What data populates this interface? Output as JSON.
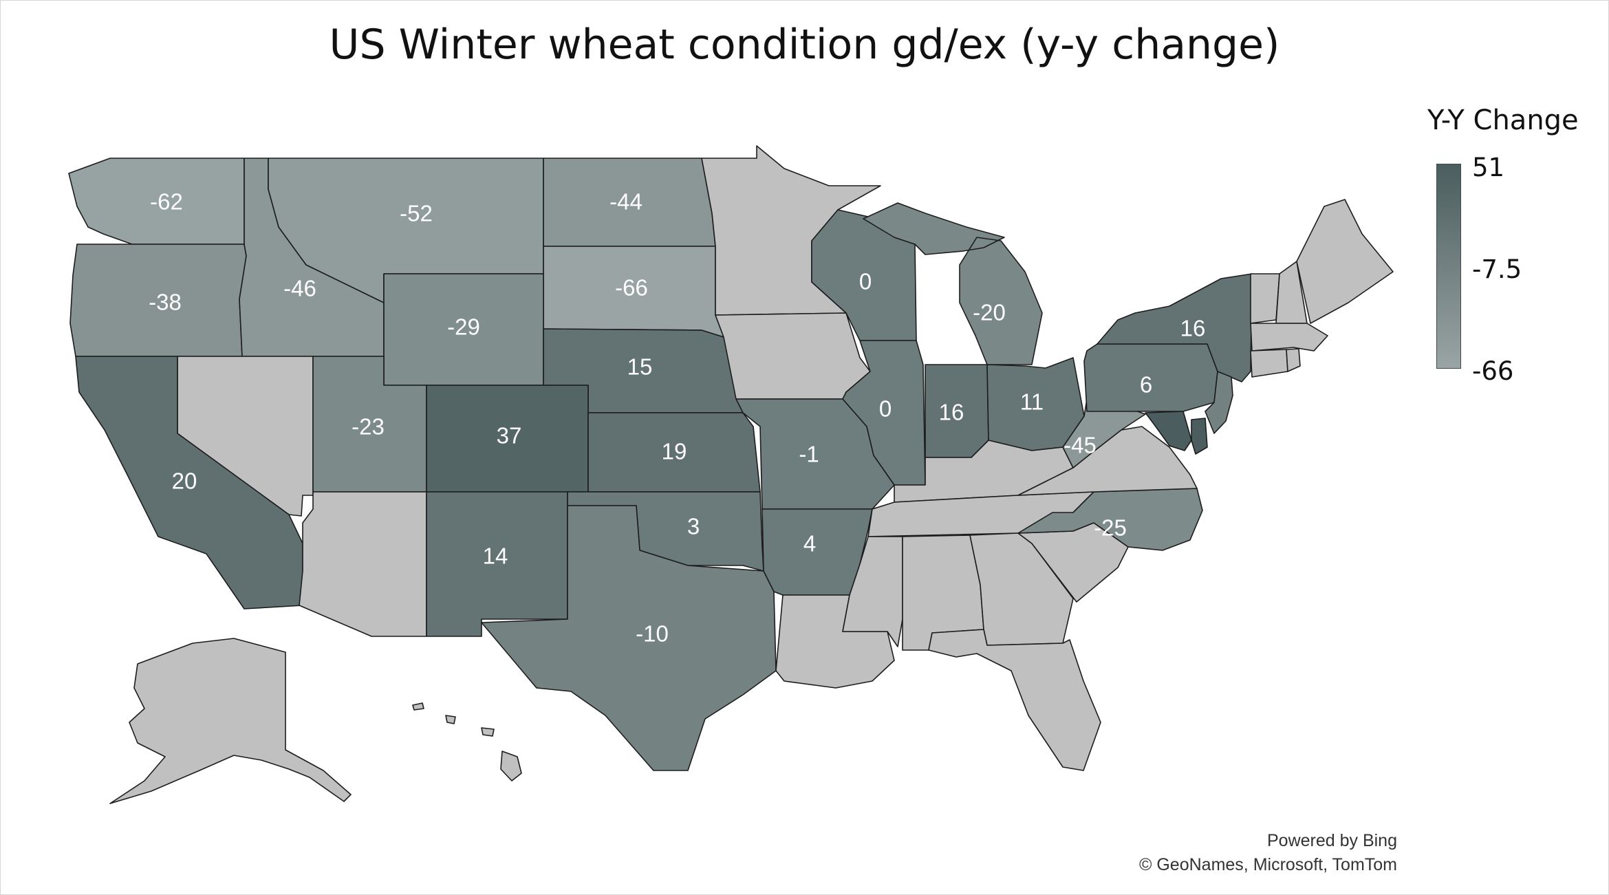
{
  "title": "US Winter wheat condition gd/ex (y-y change)",
  "legend": {
    "title": "Y-Y Change",
    "ticks": [
      "51",
      "-7.5",
      "-66"
    ],
    "min_value": -66,
    "max_value": 51,
    "color_high": "#4b5d5e",
    "color_low": "#9aa4a4"
  },
  "no_data_color": "#c0c0c0",
  "states": [
    {
      "id": "WA",
      "value": -62,
      "label": "-62"
    },
    {
      "id": "OR",
      "value": -38,
      "label": "-38"
    },
    {
      "id": "ID",
      "value": -46,
      "label": "-46"
    },
    {
      "id": "MT",
      "value": -52,
      "label": "-52"
    },
    {
      "id": "ND",
      "value": -44,
      "label": "-44"
    },
    {
      "id": "SD",
      "value": -66,
      "label": "-66"
    },
    {
      "id": "WY",
      "value": -29,
      "label": "-29"
    },
    {
      "id": "NE",
      "value": 15,
      "label": "15"
    },
    {
      "id": "CA",
      "value": 20,
      "label": "20"
    },
    {
      "id": "UT",
      "value": -23,
      "label": "-23"
    },
    {
      "id": "CO",
      "value": 37,
      "label": "37"
    },
    {
      "id": "KS",
      "value": 19,
      "label": "19"
    },
    {
      "id": "MO",
      "value": -1,
      "label": "-1"
    },
    {
      "id": "IL",
      "value": 0,
      "label": "0"
    },
    {
      "id": "WI",
      "value": 0,
      "label": "0"
    },
    {
      "id": "MI",
      "value": -20,
      "label": "-20"
    },
    {
      "id": "IN",
      "value": 16,
      "label": "16"
    },
    {
      "id": "OH",
      "value": 11,
      "label": "11"
    },
    {
      "id": "PA",
      "value": 6,
      "label": "6"
    },
    {
      "id": "NY",
      "value": 16,
      "label": "16"
    },
    {
      "id": "WV",
      "value": -45,
      "label": "-45"
    },
    {
      "id": "NC",
      "value": -25,
      "label": "-25"
    },
    {
      "id": "OK",
      "value": 3,
      "label": "3"
    },
    {
      "id": "AR",
      "value": 4,
      "label": "4"
    },
    {
      "id": "NM",
      "value": 14,
      "label": "14"
    },
    {
      "id": "TX",
      "value": -10,
      "label": "-10"
    },
    {
      "id": "NJ",
      "value": -7.5
    },
    {
      "id": "MD",
      "value": 51
    },
    {
      "id": "DE",
      "value": 51
    },
    {
      "id": "NV"
    },
    {
      "id": "AZ"
    },
    {
      "id": "MN"
    },
    {
      "id": "IA"
    },
    {
      "id": "KY"
    },
    {
      "id": "TN"
    },
    {
      "id": "VA"
    },
    {
      "id": "LA"
    },
    {
      "id": "MS"
    },
    {
      "id": "AL"
    },
    {
      "id": "GA"
    },
    {
      "id": "SC"
    },
    {
      "id": "FL"
    },
    {
      "id": "ME"
    },
    {
      "id": "NH"
    },
    {
      "id": "VT"
    },
    {
      "id": "MA"
    },
    {
      "id": "CT"
    },
    {
      "id": "RI"
    },
    {
      "id": "AK"
    },
    {
      "id": "HI"
    }
  ],
  "credits": {
    "line1": "Powered by Bing",
    "line2": "© GeoNames, Microsoft, TomTom"
  }
}
